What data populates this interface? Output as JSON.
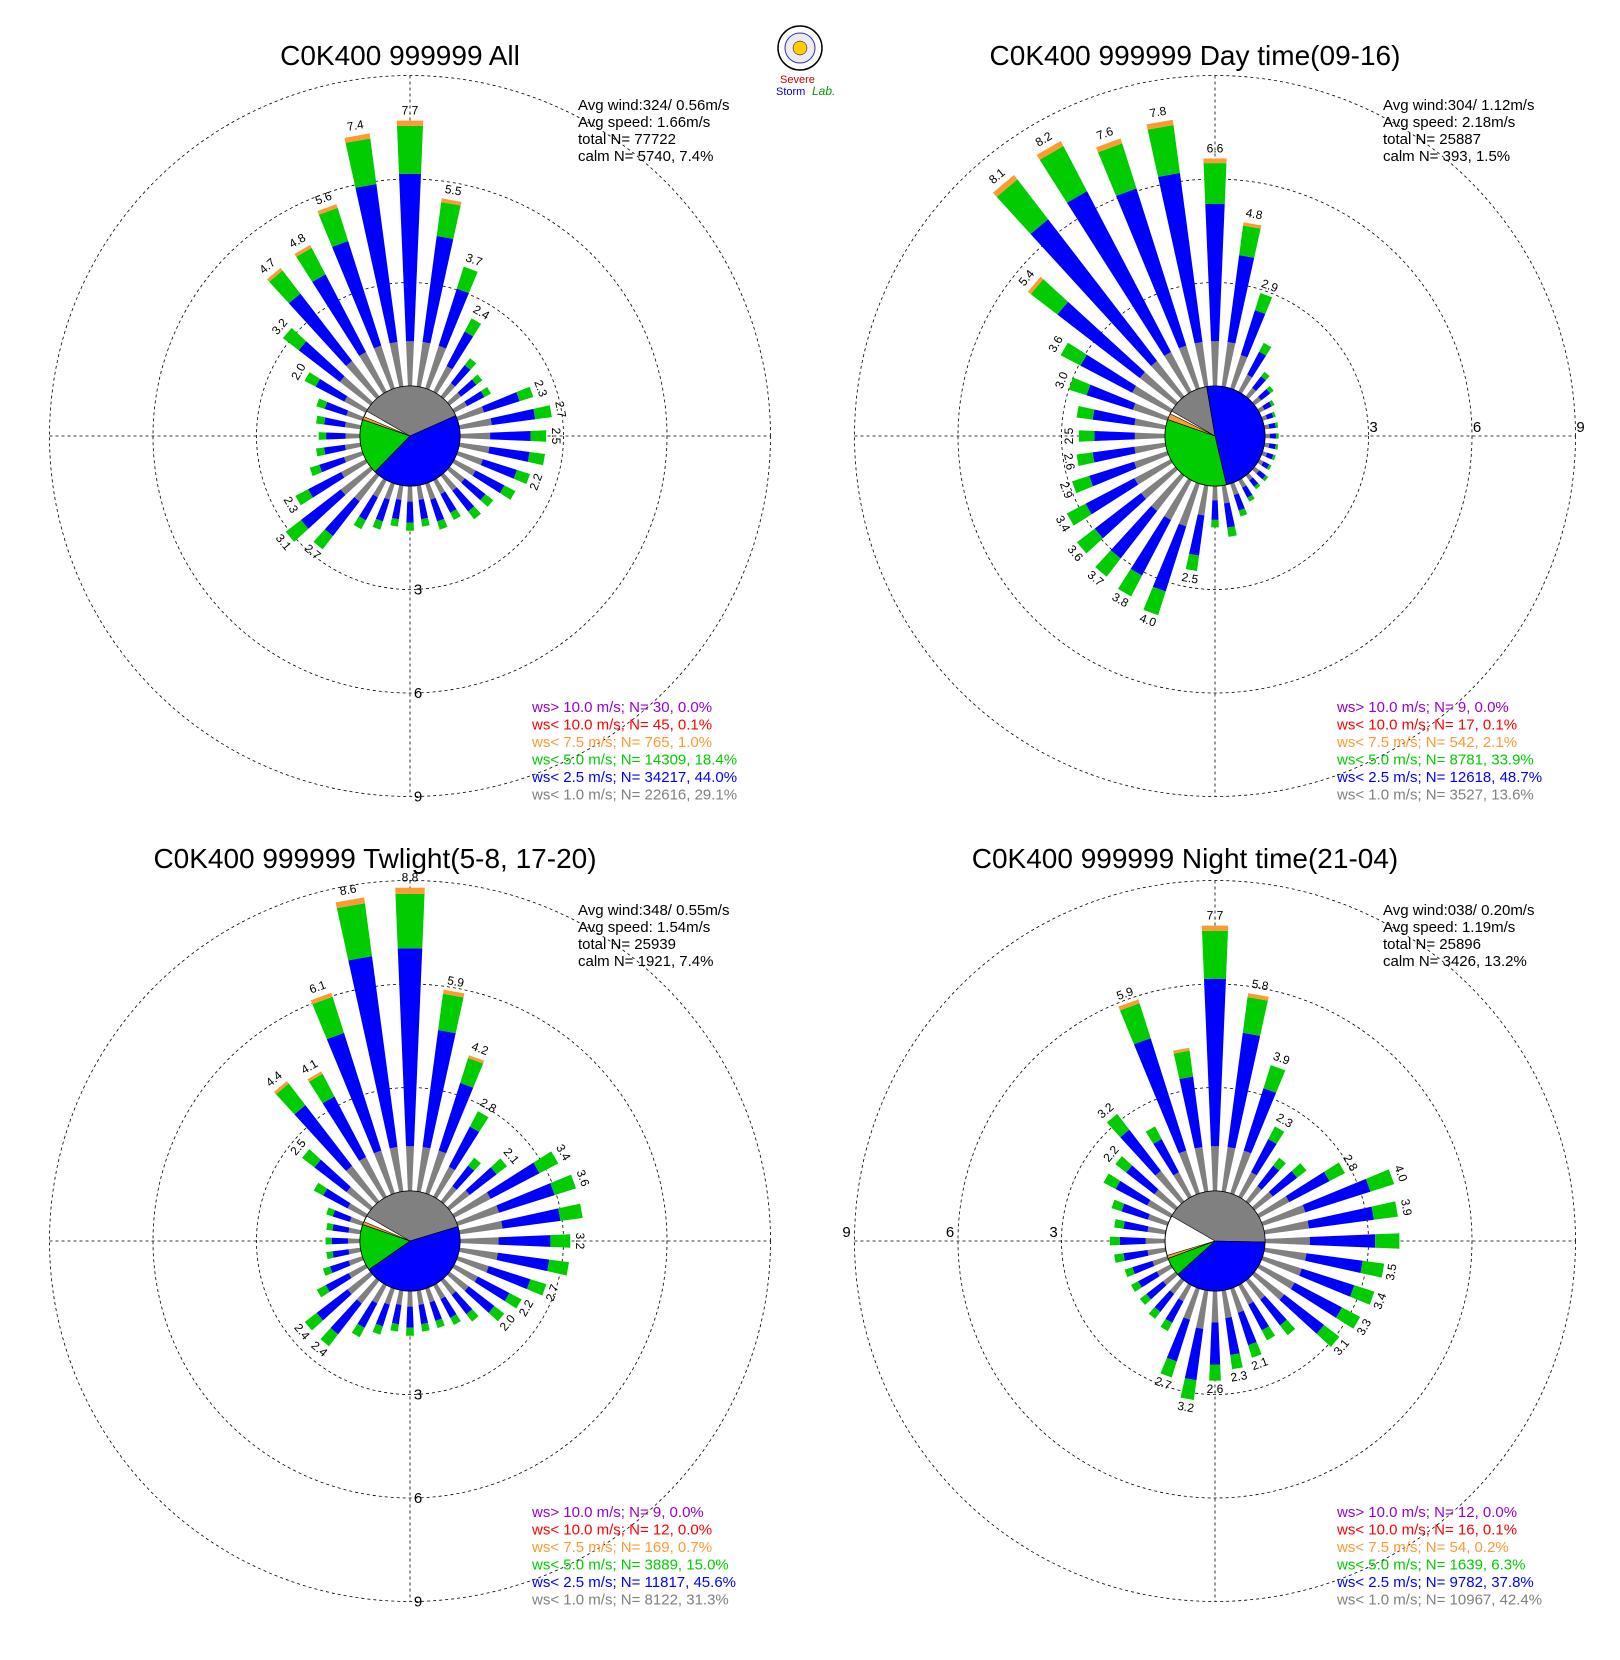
{
  "logo": {
    "text_top": "Severe",
    "text_bottom": "Storm",
    "text_lab": "Lab."
  },
  "colors": {
    "gray": "#808080",
    "blue": "#0000ff",
    "green": "#00cc00",
    "orange": "#ff9933",
    "red": "#ff0000",
    "purple": "#9900cc"
  },
  "chart_data": [
    {
      "type": "wind-rose",
      "title": "C0K400 999999 All",
      "stats": [
        "Avg wind:324/ 0.56m/s",
        "Avg speed: 1.66m/s",
        "total N=      77722",
        "calm N=   5740,   7.4%"
      ],
      "ring_labels": [
        "3",
        "6",
        "9"
      ],
      "legend": [
        {
          "text": "ws> 10.0 m/s; N=    30,  0.0%",
          "color": "#9900cc"
        },
        {
          "text": "ws< 10.0 m/s; N=    45,  0.1%",
          "color": "#ff0000"
        },
        {
          "text": "ws<  7.5 m/s; N=   765,  1.0%",
          "color": "#ff9933"
        },
        {
          "text": "ws<  5.0 m/s; N= 14309, 18.4%",
          "color": "#00cc00"
        },
        {
          "text": "ws<  2.5 m/s; N= 34217, 44.0%",
          "color": "#0000ff"
        },
        {
          "text": "ws<  1.0 m/s; N= 22616, 29.1%",
          "color": "#808080"
        }
      ],
      "calm_pie": {
        "gray": 0.35,
        "blue": 0.44,
        "green": 0.18,
        "orange": 0.01
      },
      "totals": [
        7.7,
        5.5,
        3.7,
        2.4,
        1.4,
        1.2,
        1.2,
        2.3,
        2.7,
        2.5,
        2.5,
        2.2,
        2.0,
        1.6,
        1.6,
        1.3,
        1.4,
        1.2,
        1.3,
        1.2,
        1.4,
        1.6,
        2.7,
        3.1,
        2.3,
        1.6,
        1.3,
        1.2,
        1.3,
        1.4,
        2.0,
        3.2,
        4.7,
        4.8,
        5.6,
        7.4
      ],
      "labels": [
        "7.7",
        "5.5",
        "3.7",
        "2.4",
        "",
        "",
        "",
        "2.3",
        "2.7",
        "2.5",
        "",
        "2.2",
        "",
        "",
        "",
        "",
        "",
        "",
        "",
        "",
        "",
        "",
        "2.7",
        "3.1",
        "2.3",
        "",
        "",
        "",
        "",
        "",
        "2.0",
        "3.2",
        "4.7",
        "4.8",
        "5.6",
        "7.4"
      ]
    },
    {
      "type": "wind-rose",
      "title": "C0K400 999999 Day time(09-16)",
      "stats": [
        "Avg wind:304/ 1.12m/s",
        "Avg speed: 2.18m/s",
        "total N=      25887",
        "calm N=    393,   1.5%"
      ],
      "ring_labels": [
        "3",
        "6",
        "9"
      ],
      "legend": [
        {
          "text": "ws> 10.0 m/s; N=     9,  0.0%",
          "color": "#9900cc"
        },
        {
          "text": "ws< 10.0 m/s; N=    17,  0.1%",
          "color": "#ff0000"
        },
        {
          "text": "ws<  7.5 m/s; N=   542,  2.1%",
          "color": "#ff9933"
        },
        {
          "text": "ws<  5.0 m/s; N=  8781, 33.9%",
          "color": "#00cc00"
        },
        {
          "text": "ws<  2.5 m/s; N= 12618, 48.7%",
          "color": "#0000ff"
        },
        {
          "text": "ws<  1.0 m/s; N=  3527, 13.6%",
          "color": "#808080"
        }
      ],
      "calm_pie": {
        "gray": 0.14,
        "blue": 0.49,
        "green": 0.34,
        "orange": 0.02
      },
      "totals": [
        6.6,
        4.8,
        2.9,
        1.6,
        0.9,
        0.7,
        0.5,
        0.4,
        0.4,
        0.4,
        0.4,
        0.4,
        0.4,
        0.5,
        0.5,
        0.7,
        1.0,
        1.5,
        1.2,
        2.5,
        4.0,
        3.8,
        3.7,
        3.6,
        3.4,
        2.9,
        2.6,
        2.5,
        2.6,
        3.0,
        3.6,
        5.4,
        8.1,
        8.2,
        7.6,
        7.8
      ],
      "labels": [
        "6.6",
        "4.8",
        "2.9",
        "",
        "",
        "",
        "",
        "",
        "",
        "",
        "",
        "",
        "",
        "",
        "",
        "",
        "",
        "",
        "",
        "2.5",
        "4.0",
        "3.8",
        "3.7",
        "3.6",
        "3.4",
        "2.9",
        "2.6",
        "2.5",
        "",
        "3.0",
        "3.6",
        "5.4",
        "8.1",
        "8.2",
        "7.6",
        "7.8"
      ]
    },
    {
      "type": "wind-rose",
      "title": "C0K400 999999 Twlight(5-8, 17-20)",
      "stats": [
        "Avg wind:348/ 0.55m/s",
        "Avg speed: 1.54m/s",
        "total N=      25939",
        "calm N=   1921,   7.4%"
      ],
      "ring_labels": [
        "3",
        "6",
        "9"
      ],
      "legend": [
        {
          "text": "ws> 10.0 m/s; N=     9,  0.0%",
          "color": "#9900cc"
        },
        {
          "text": "ws< 10.0 m/s; N=    12,  0.0%",
          "color": "#ff0000"
        },
        {
          "text": "ws<  7.5 m/s; N=   169,  0.7%",
          "color": "#ff9933"
        },
        {
          "text": "ws<  5.0 m/s; N=  3889, 15.0%",
          "color": "#00cc00"
        },
        {
          "text": "ws<  2.5 m/s; N= 11817, 45.6%",
          "color": "#0000ff"
        },
        {
          "text": "ws<  1.0 m/s; N=  8122, 31.3%",
          "color": "#808080"
        }
      ],
      "calm_pie": {
        "gray": 0.37,
        "blue": 0.45,
        "green": 0.15,
        "orange": 0.01
      },
      "totals": [
        8.8,
        5.9,
        4.2,
        2.8,
        1.6,
        2.1,
        3.4,
        3.6,
        3.6,
        3.2,
        3.2,
        2.7,
        2.2,
        2.0,
        1.5,
        1.3,
        1.2,
        1.2,
        1.3,
        1.2,
        1.4,
        1.7,
        2.4,
        2.4,
        1.6,
        1.2,
        1.0,
        1.0,
        1.0,
        1.1,
        1.7,
        2.5,
        4.4,
        4.1,
        6.1,
        8.6
      ],
      "labels": [
        "8.8",
        "5.9",
        "4.2",
        "2.8",
        "",
        "2.1",
        "3.4",
        "3.6",
        "",
        "3.2",
        "",
        "2.7",
        "2.2",
        "2.0",
        "",
        "",
        "",
        "",
        "",
        "",
        "",
        "",
        "2.4",
        "2.4",
        "",
        "",
        "",
        "",
        "",
        "",
        "",
        "2.5",
        "4.4",
        "4.1",
        "6.1",
        "8.6"
      ]
    },
    {
      "type": "wind-rose",
      "title": "C0K400 999999 Night time(21-04)",
      "stats": [
        "Avg wind:038/ 0.20m/s",
        "Avg speed: 1.19m/s",
        "total N=      25896",
        "calm N=   3426,  13.2%"
      ],
      "ring_labels": [
        "3",
        "6",
        "9"
      ],
      "legend": [
        {
          "text": "ws> 10.0 m/s; N=    12,  0.0%",
          "color": "#9900cc"
        },
        {
          "text": "ws< 10.0 m/s; N=    16,  0.1%",
          "color": "#ff0000"
        },
        {
          "text": "ws<  7.5 m/s; N=    54,  0.2%",
          "color": "#ff9933"
        },
        {
          "text": "ws<  5.0 m/s; N=  1639,  6.3%",
          "color": "#00cc00"
        },
        {
          "text": "ws<  2.5 m/s; N=  9782, 37.8%",
          "color": "#0000ff"
        },
        {
          "text": "ws<  1.0 m/s; N= 10967, 42.4%",
          "color": "#808080"
        }
      ],
      "calm_pie": {
        "gray": 0.42,
        "blue": 0.38,
        "green": 0.06,
        "orange": 0.01
      },
      "totals": [
        7.7,
        5.8,
        3.9,
        2.3,
        1.6,
        1.9,
        2.8,
        4.0,
        3.9,
        3.9,
        3.5,
        3.4,
        3.3,
        3.1,
        2.0,
        1.8,
        2.1,
        2.3,
        2.6,
        3.2,
        2.7,
        1.5,
        1.4,
        1.3,
        1.3,
        1.3,
        1.5,
        1.6,
        1.5,
        1.7,
        2.2,
        2.2,
        3.2,
        2.3,
        5.9,
        4.2
      ],
      "labels": [
        "7.7",
        "5.8",
        "3.9",
        "2.3",
        "",
        "",
        "2.8",
        "4.0",
        "3.9",
        "",
        "3.5",
        "3.4",
        "3.3",
        "3.1",
        "",
        "",
        "2.1",
        "2.3",
        "2.6",
        "3.2",
        "2.7",
        "",
        "",
        "",
        "",
        "",
        "",
        "",
        "",
        "",
        "",
        "2.2",
        "3.2",
        "",
        "5.9",
        ""
      ]
    }
  ]
}
